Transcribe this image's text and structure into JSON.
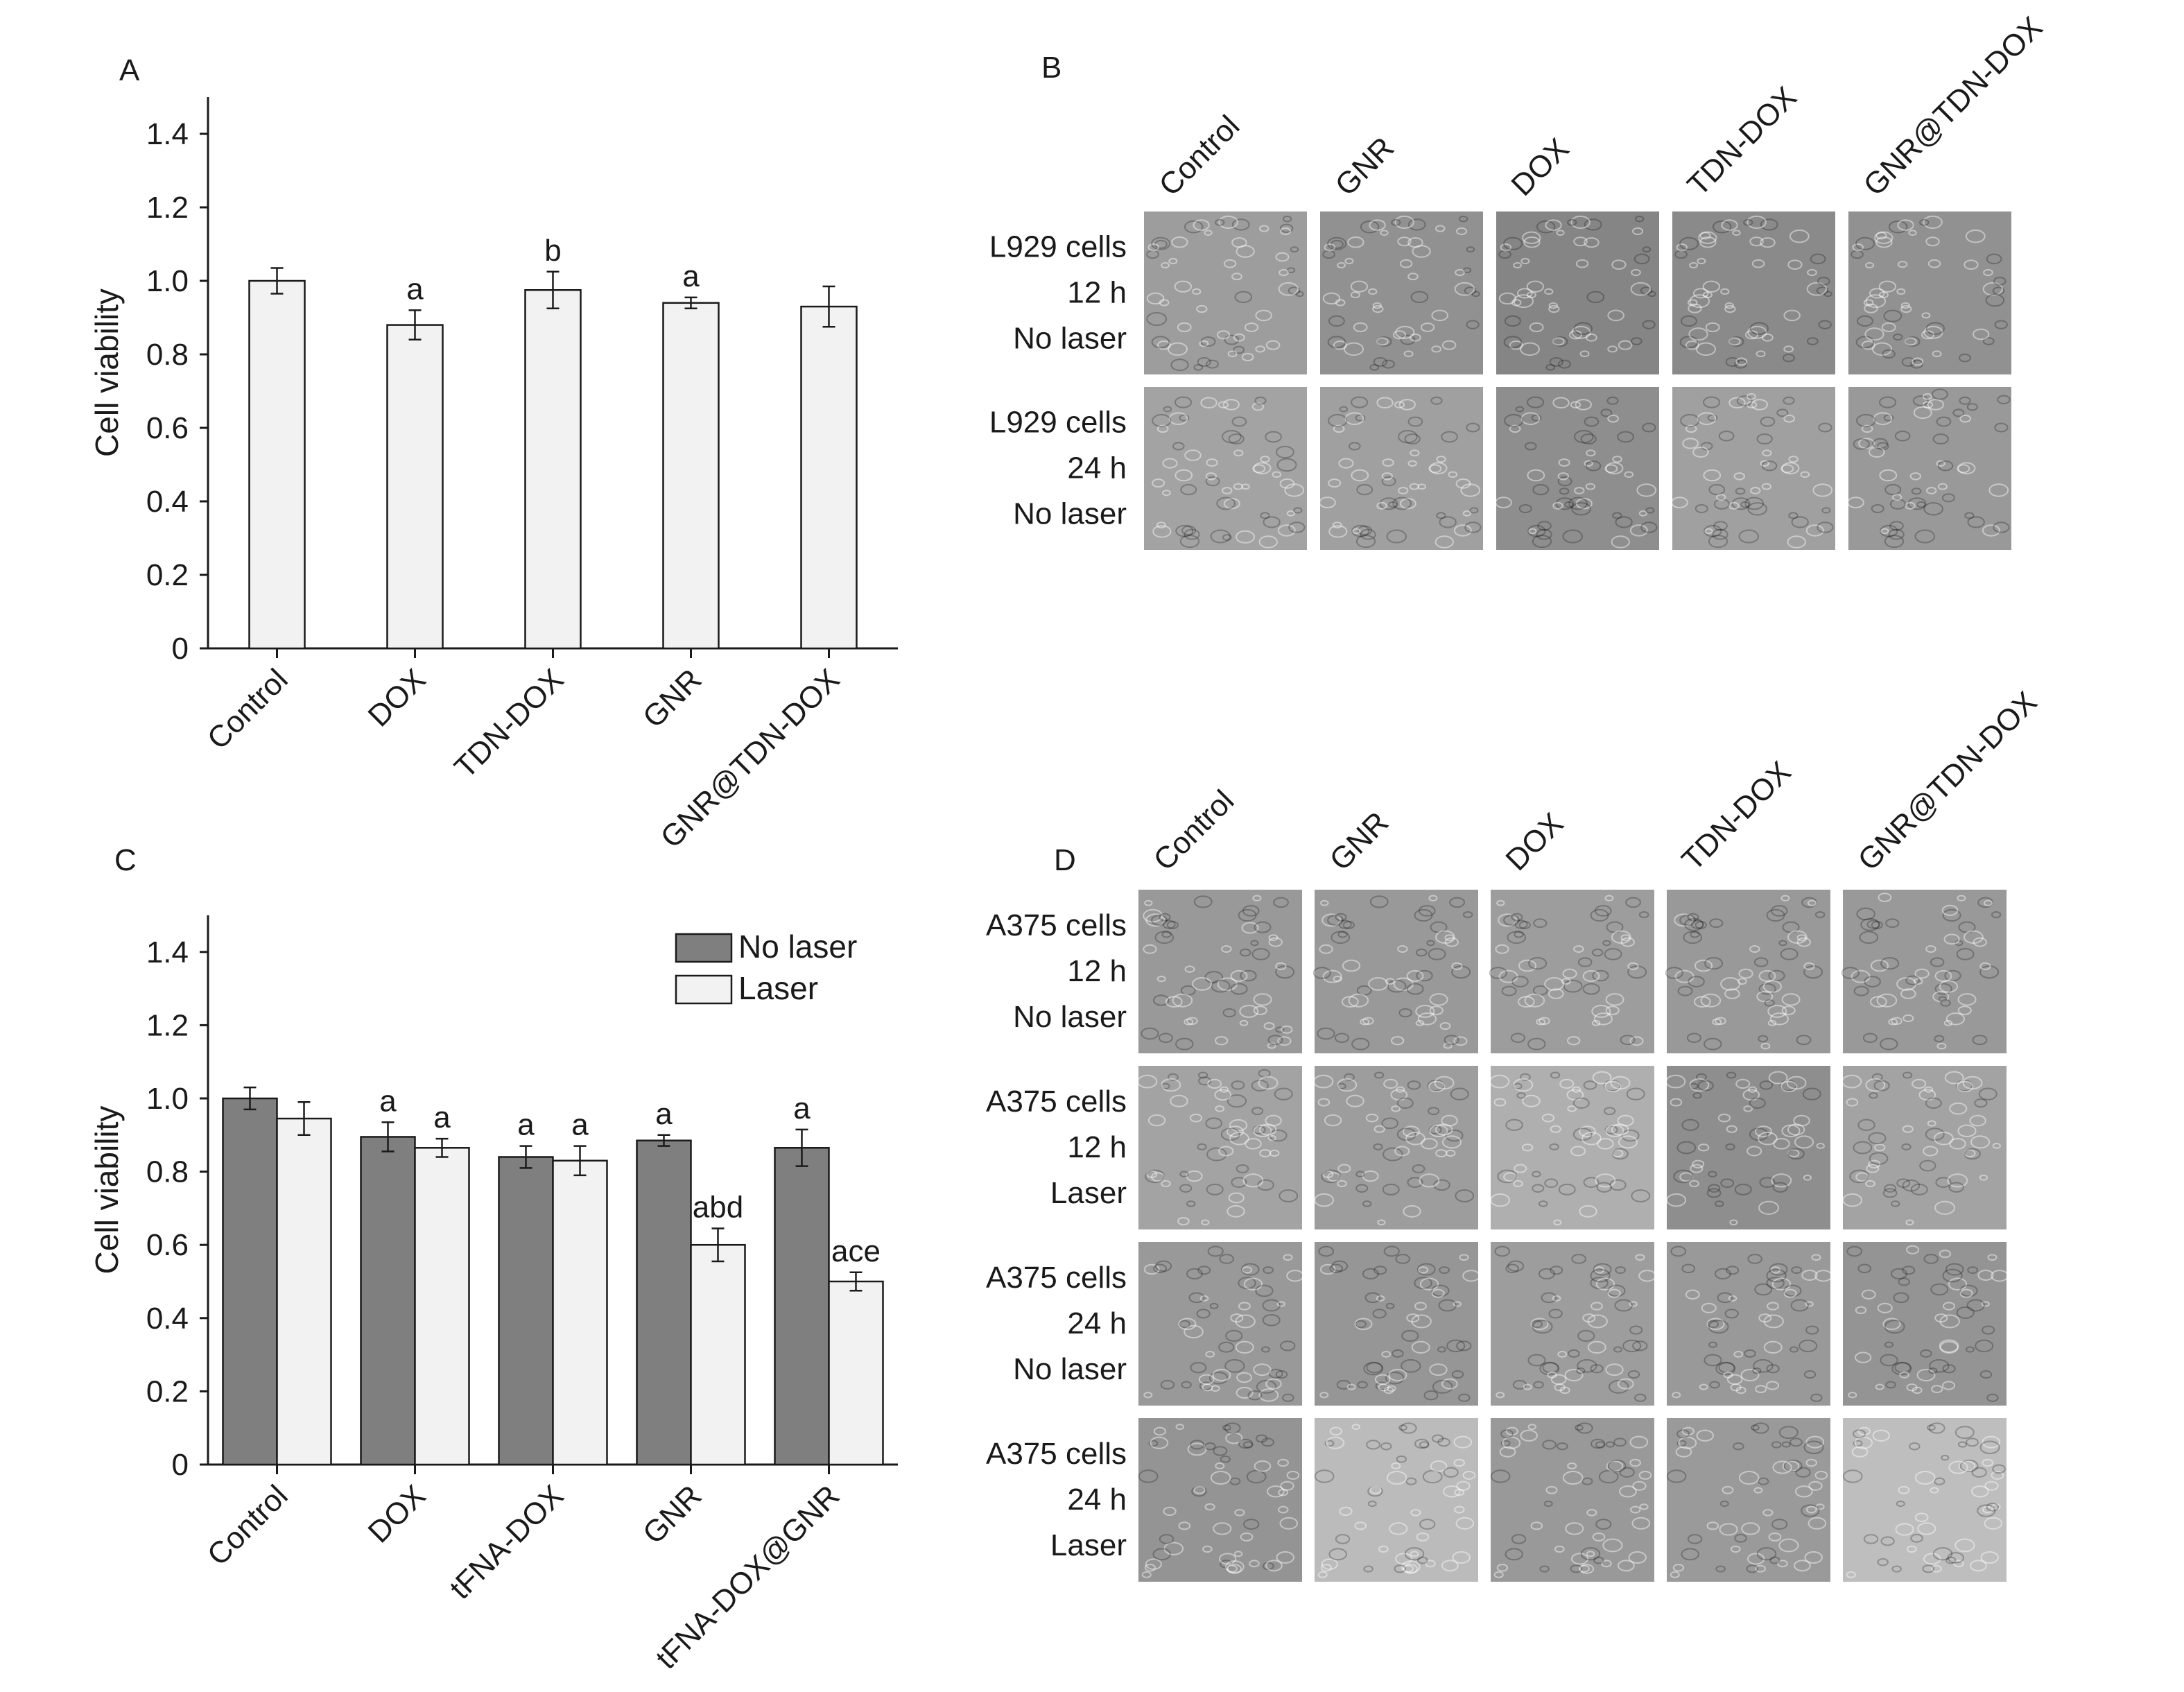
{
  "colors": {
    "bar_light": "#f2f2f2",
    "bar_dark": "#7f7f7f",
    "axis": "#1a1a1a",
    "micro_base": "#8a8a8a"
  },
  "panel_labels": {
    "a": "A",
    "b": "B",
    "c": "C",
    "d": "D"
  },
  "chart_data": [
    {
      "panel": "A",
      "type": "bar",
      "ylabel": "Cell viability",
      "ylim": [
        0,
        1.5
      ],
      "yticks": [
        "0",
        "0.2",
        "0.4",
        "0.6",
        "0.8",
        "1.0",
        "1.2",
        "1.4"
      ],
      "categories": [
        "Control",
        "DOX",
        "TDN-DOX",
        "GNR",
        "GNR@TDN-DOX"
      ],
      "series": [
        {
          "values": [
            1.0,
            0.88,
            0.975,
            0.94,
            0.93
          ],
          "errors": [
            0.035,
            0.04,
            0.05,
            0.015,
            0.055
          ],
          "annotations": [
            "",
            "a",
            "b",
            "a",
            ""
          ]
        }
      ],
      "grid": false
    },
    {
      "panel": "C",
      "type": "bar",
      "ylabel": "Cell viability",
      "ylim": [
        0,
        1.5
      ],
      "yticks": [
        "0",
        "0.2",
        "0.4",
        "0.6",
        "0.8",
        "1.0",
        "1.2",
        "1.4"
      ],
      "categories": [
        "Control",
        "DOX",
        "tFNA-DOX",
        "GNR",
        "tFNA-DOX@GNR"
      ],
      "series": [
        {
          "name": "No laser",
          "values": [
            1.0,
            0.895,
            0.84,
            0.885,
            0.865
          ],
          "errors": [
            0.03,
            0.04,
            0.03,
            0.015,
            0.05
          ],
          "annotations": [
            "",
            "a",
            "a",
            "a",
            "a"
          ]
        },
        {
          "name": "Laser",
          "values": [
            0.945,
            0.865,
            0.83,
            0.6,
            0.5
          ],
          "errors": [
            0.045,
            0.025,
            0.04,
            0.045,
            0.025
          ],
          "annotations": [
            "",
            "a",
            "a",
            "abd",
            "ace"
          ]
        }
      ],
      "legend": "top-right",
      "grid": false
    }
  ],
  "micrographs_b": {
    "columns": [
      "Control",
      "GNR",
      "DOX",
      "TDN-DOX",
      "GNR@TDN-DOX"
    ],
    "rows": [
      {
        "lines": [
          "L929 cells",
          "12 h",
          "No laser"
        ],
        "tones": [
          0.58,
          0.5,
          0.42,
          0.45,
          0.5
        ]
      },
      {
        "lines": [
          "L929 cells",
          "24 h",
          "No laser"
        ],
        "tones": [
          0.62,
          0.6,
          0.48,
          0.6,
          0.55
        ]
      }
    ]
  },
  "micrographs_d": {
    "columns": [
      "Control",
      "GNR",
      "DOX",
      "TDN-DOX",
      "GNR@TDN-DOX"
    ],
    "rows": [
      {
        "lines": [
          "A375 cells",
          "12 h",
          "No laser"
        ],
        "tones": [
          0.55,
          0.55,
          0.58,
          0.55,
          0.55
        ]
      },
      {
        "lines": [
          "A375 cells",
          "12 h",
          "Laser"
        ],
        "tones": [
          0.62,
          0.58,
          0.7,
          0.48,
          0.62
        ]
      },
      {
        "lines": [
          "A375 cells",
          "24 h",
          "No laser"
        ],
        "tones": [
          0.55,
          0.53,
          0.58,
          0.55,
          0.52
        ]
      },
      {
        "lines": [
          "A375 cells",
          "24 h",
          "Laser"
        ],
        "tones": [
          0.52,
          0.78,
          0.55,
          0.56,
          0.8
        ]
      }
    ]
  }
}
